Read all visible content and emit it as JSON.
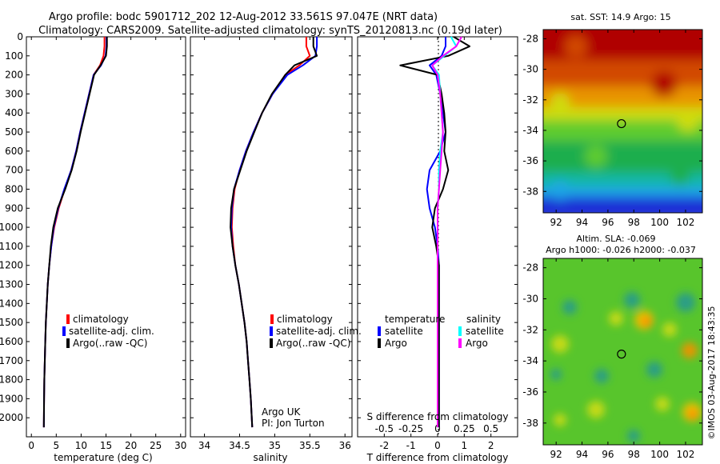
{
  "header": {
    "title_line1": "Argo profile: bodc 5901712_202 12-Aug-2012 33.561S 97.047E (NRT data)",
    "title_line2": "Climatology: CARS2009. Satellite-adjusted climatology: synTS_20120813.nc (0.19d later)"
  },
  "credits": {
    "line1": "Argo UK",
    "line2": "PI: Jon Turton",
    "stamp": "©IMOS 03-Aug-2017 18:43:35"
  },
  "colors": {
    "climatology": "#ff0000",
    "satellite": "#0000ff",
    "argo": "#000000",
    "sal_satellite": "#00ffff",
    "sal_argo": "#ff00ff"
  },
  "legend_profiles": {
    "items": [
      {
        "label": "climatology",
        "color": "#ff0000"
      },
      {
        "label": "satellite-adj. clim.",
        "color": "#0000ff"
      },
      {
        "label": "Argo(..raw -QC)",
        "color": "#000000"
      }
    ]
  },
  "legend_diff": {
    "temp_header": "temperature",
    "sal_header": "salinity",
    "temp_items": [
      {
        "label": "satellite",
        "color": "#0000ff"
      },
      {
        "label": "Argo",
        "color": "#000000"
      }
    ],
    "sal_items": [
      {
        "label": "satellite",
        "color": "#00ffff"
      },
      {
        "label": "Argo",
        "color": "#ff00ff"
      }
    ]
  },
  "chart_data": [
    {
      "type": "line",
      "xlabel": "temperature (deg C)",
      "ylabel": "",
      "xlim": [
        -1,
        31
      ],
      "ylim": [
        2100,
        0
      ],
      "xticks": [
        0,
        5,
        10,
        15,
        20,
        25,
        30
      ],
      "yticks": [
        0,
        100,
        200,
        300,
        400,
        500,
        600,
        700,
        800,
        900,
        1000,
        1100,
        1200,
        1300,
        1400,
        1500,
        1600,
        1700,
        1800,
        1900,
        2000
      ],
      "legend": "lower-left",
      "series": [
        {
          "name": "climatology",
          "color": "#ff0000",
          "x": [
            14.7,
            14.7,
            14.5,
            13.8,
            12.5,
            11.6,
            10.7,
            9.8,
            9.0,
            8.0,
            6.7,
            5.5,
            4.6,
            4.0,
            3.6,
            3.3,
            3.1,
            2.9,
            2.8,
            2.7,
            2.6,
            2.55,
            2.5
          ],
          "y": [
            0,
            50,
            100,
            150,
            200,
            300,
            400,
            500,
            600,
            700,
            800,
            900,
            1000,
            1100,
            1200,
            1300,
            1400,
            1500,
            1600,
            1700,
            1800,
            1900,
            2050
          ]
        },
        {
          "name": "satellite-adj. clim.",
          "color": "#0000ff",
          "x": [
            15.1,
            15.1,
            14.9,
            14.0,
            12.5,
            11.6,
            10.7,
            9.8,
            9.0,
            8.0,
            6.6,
            5.4,
            4.5,
            4.0,
            3.6,
            3.3,
            3.1,
            2.9,
            2.8,
            2.7,
            2.6,
            2.55,
            2.5
          ],
          "y": [
            0,
            50,
            100,
            150,
            200,
            300,
            400,
            500,
            600,
            700,
            800,
            900,
            1000,
            1100,
            1200,
            1300,
            1400,
            1500,
            1600,
            1700,
            1800,
            1900,
            2050
          ]
        },
        {
          "name": "Argo(..raw -QC)",
          "color": "#000000",
          "x": [
            15.2,
            15.2,
            15.0,
            13.9,
            12.6,
            11.7,
            10.8,
            9.9,
            9.1,
            8.1,
            6.8,
            5.3,
            4.4,
            3.9,
            3.6,
            3.3,
            3.1,
            2.9,
            2.8,
            2.7,
            2.6,
            2.55,
            2.5
          ],
          "y": [
            0,
            50,
            100,
            150,
            200,
            300,
            400,
            500,
            600,
            700,
            800,
            900,
            1000,
            1100,
            1200,
            1300,
            1400,
            1500,
            1600,
            1700,
            1800,
            1900,
            2050
          ]
        }
      ]
    },
    {
      "type": "line",
      "xlabel": "salinity",
      "ylabel": "",
      "xlim": [
        33.8,
        36.1
      ],
      "ylim": [
        2100,
        0
      ],
      "xticks": [
        34,
        34.5,
        35,
        35.5,
        36
      ],
      "legend": "lower-right",
      "series": [
        {
          "name": "climatology",
          "color": "#ff0000",
          "x": [
            35.45,
            35.45,
            35.5,
            35.35,
            35.15,
            34.97,
            34.82,
            34.7,
            34.59,
            34.5,
            34.43,
            34.4,
            34.39,
            34.41,
            34.44,
            34.49,
            34.53,
            34.57,
            34.6,
            34.62,
            34.64,
            34.66,
            34.68
          ],
          "y": [
            0,
            50,
            100,
            150,
            200,
            300,
            400,
            500,
            600,
            700,
            800,
            900,
            1000,
            1100,
            1200,
            1300,
            1400,
            1500,
            1600,
            1700,
            1800,
            1900,
            2050
          ]
        },
        {
          "name": "satellite-adj. clim.",
          "color": "#0000ff",
          "x": [
            35.6,
            35.6,
            35.58,
            35.4,
            35.18,
            34.97,
            34.82,
            34.7,
            34.59,
            34.5,
            34.42,
            34.39,
            34.38,
            34.4,
            34.44,
            34.49,
            34.53,
            34.57,
            34.6,
            34.62,
            34.64,
            34.66,
            34.68
          ],
          "y": [
            0,
            50,
            100,
            150,
            200,
            300,
            400,
            500,
            600,
            700,
            800,
            900,
            1000,
            1100,
            1200,
            1300,
            1400,
            1500,
            1600,
            1700,
            1800,
            1900,
            2050
          ]
        },
        {
          "name": "Argo(..raw -QC)",
          "color": "#000000",
          "x": [
            35.55,
            35.55,
            35.6,
            35.28,
            35.15,
            34.96,
            34.82,
            34.71,
            34.6,
            34.51,
            34.42,
            34.38,
            34.37,
            34.4,
            34.44,
            34.49,
            34.53,
            34.57,
            34.6,
            34.62,
            34.64,
            34.66,
            34.68
          ],
          "y": [
            0,
            50,
            100,
            150,
            200,
            300,
            400,
            500,
            600,
            700,
            800,
            900,
            1000,
            1100,
            1200,
            1300,
            1400,
            1500,
            1600,
            1700,
            1800,
            1900,
            2050
          ]
        }
      ]
    },
    {
      "type": "line",
      "xlabel": "T difference from climatology",
      "xlabel_top": "S difference from climatology",
      "xlim": [
        -3,
        3
      ],
      "ylim": [
        2100,
        0
      ],
      "xticks": [
        -2,
        -1,
        0,
        1,
        2
      ],
      "xticklabels_top": [
        "-0.5",
        "-0.25",
        "0",
        "0.25",
        "0.5"
      ],
      "legend": "lower-center",
      "series": [
        {
          "name": "temperature satellite",
          "color": "#0000ff",
          "x": [
            0.3,
            0.3,
            0.15,
            -0.3,
            -0.05,
            0.1,
            0.2,
            0.3,
            0.1,
            -0.3,
            -0.4,
            -0.3,
            -0.1,
            0.0,
            0.05,
            0.05,
            0.05,
            0.05,
            0.05,
            0.05,
            0.05,
            0.05,
            0.05
          ],
          "y": [
            0,
            50,
            100,
            150,
            200,
            300,
            400,
            500,
            600,
            700,
            800,
            900,
            1000,
            1100,
            1200,
            1300,
            1400,
            1500,
            1600,
            1700,
            1800,
            1900,
            2050
          ]
        },
        {
          "name": "temperature Argo",
          "color": "#000000",
          "x": [
            0.6,
            1.2,
            0.4,
            -1.4,
            0.0,
            0.15,
            0.25,
            0.3,
            0.25,
            0.4,
            0.2,
            -0.1,
            -0.2,
            -0.05,
            0.05,
            0.05,
            0.05,
            0.05,
            0.05,
            0.05,
            0.05,
            0.05,
            0.05
          ],
          "y": [
            0,
            50,
            100,
            150,
            200,
            300,
            400,
            500,
            600,
            700,
            800,
            900,
            1000,
            1100,
            1200,
            1300,
            1400,
            1500,
            1600,
            1700,
            1800,
            1900,
            2050
          ]
        },
        {
          "name": "salinity satellite",
          "color": "#00ffff",
          "x": [
            0.5,
            0.7,
            0.25,
            -0.2,
            0.05,
            0.1,
            0.15,
            0.2,
            0.1,
            0.05,
            0.05,
            0.0,
            0.0,
            0.0,
            0.0,
            0.0,
            0.0,
            0.0,
            0.0,
            0.0,
            0.0,
            0.0,
            0.0
          ],
          "y": [
            0,
            50,
            100,
            150,
            200,
            300,
            400,
            500,
            600,
            700,
            800,
            900,
            1000,
            1100,
            1200,
            1300,
            1400,
            1500,
            1600,
            1700,
            1800,
            1900,
            2050
          ]
        },
        {
          "name": "salinity Argo",
          "color": "#ff00ff",
          "x": [
            0.9,
            0.7,
            0.2,
            -0.2,
            0.0,
            0.1,
            0.15,
            0.2,
            0.15,
            0.1,
            0.05,
            0.0,
            0.0,
            0.0,
            0.0,
            0.0,
            0.0,
            0.0,
            0.0,
            0.0,
            0.0,
            0.0,
            0.0
          ],
          "y": [
            0,
            50,
            100,
            150,
            200,
            300,
            400,
            500,
            600,
            700,
            800,
            900,
            1000,
            1100,
            1200,
            1300,
            1400,
            1500,
            1600,
            1700,
            1800,
            1900,
            2050
          ]
        }
      ]
    },
    {
      "type": "heatmap",
      "title": "sat. SST: 14.9  Argo: 15",
      "xlim": [
        91,
        103.3
      ],
      "ylim": [
        -39.4,
        -27.4
      ],
      "xticks": [
        92,
        94,
        96,
        98,
        100,
        102
      ],
      "yticks": [
        -28,
        -30,
        -32,
        -34,
        -36,
        -38
      ],
      "marker": {
        "x": 97.047,
        "y": -33.561
      }
    },
    {
      "type": "heatmap",
      "title": "Altim. SLA: -0.069",
      "subtitle": "Argo h1000: -0.026 h2000: -0.037",
      "xlim": [
        91,
        103.3
      ],
      "ylim": [
        -39.4,
        -27.4
      ],
      "xticks": [
        92,
        94,
        96,
        98,
        100,
        102
      ],
      "yticks": [
        -28,
        -30,
        -32,
        -34,
        -36,
        -38
      ],
      "marker": {
        "x": 97.047,
        "y": -33.561
      }
    }
  ]
}
